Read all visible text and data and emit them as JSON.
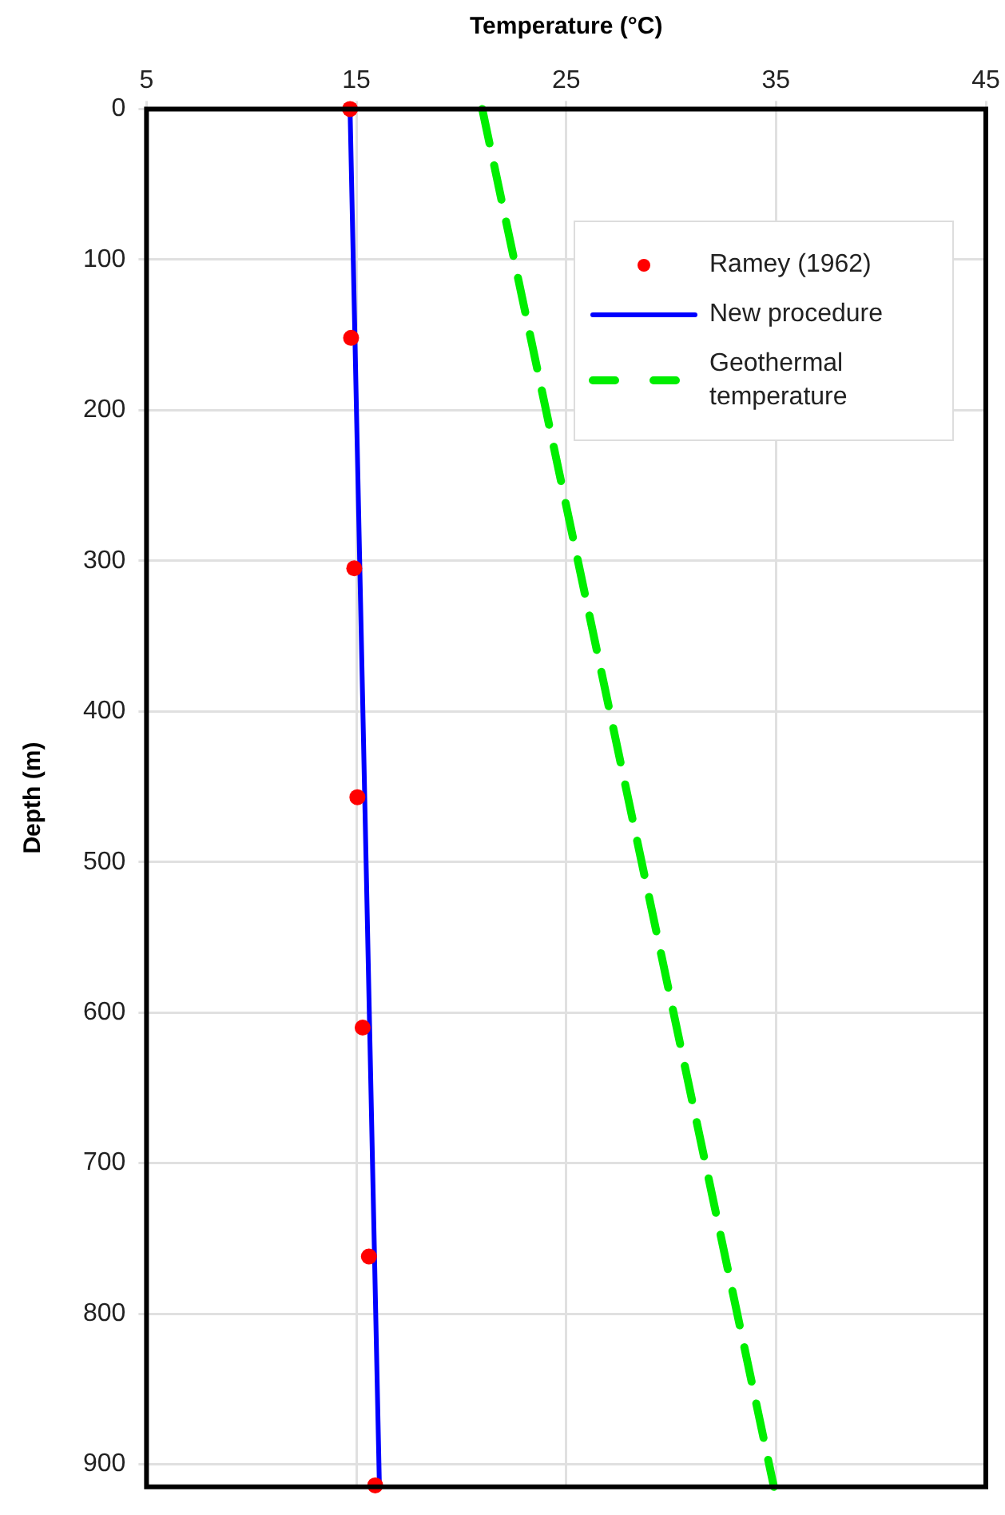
{
  "chart_data": {
    "type": "line",
    "xlabel": "Temperature (°C)",
    "ylabel": "Depth (m)",
    "xlim": [
      5,
      45
    ],
    "xticks": [
      5,
      15,
      25,
      35,
      45
    ],
    "ylim": [
      915,
      0
    ],
    "yticks": [
      0,
      100,
      200,
      300,
      400,
      500,
      600,
      700,
      800,
      900
    ],
    "grid": true,
    "legend": "top right",
    "series": [
      {
        "name": "Ramey (1962)",
        "type": "scatter",
        "color": "#ff0000",
        "marker": "circle",
        "x": [
          14.7,
          14.75,
          14.9,
          15.05,
          15.3,
          15.6,
          15.9
        ],
        "values": [
          0,
          152,
          305,
          457,
          610,
          762,
          914
        ]
      },
      {
        "name": "New procedure",
        "color": "#0000ff",
        "line_style": "solid",
        "marker": "none",
        "x": [
          14.7,
          16.1
        ],
        "values": [
          0,
          915
        ]
      },
      {
        "name": "Geothermal temperature",
        "color": "#00ee00",
        "line_style": "dashed",
        "marker": "none",
        "x": [
          21,
          34.9
        ],
        "values": [
          0,
          915
        ]
      }
    ]
  }
}
